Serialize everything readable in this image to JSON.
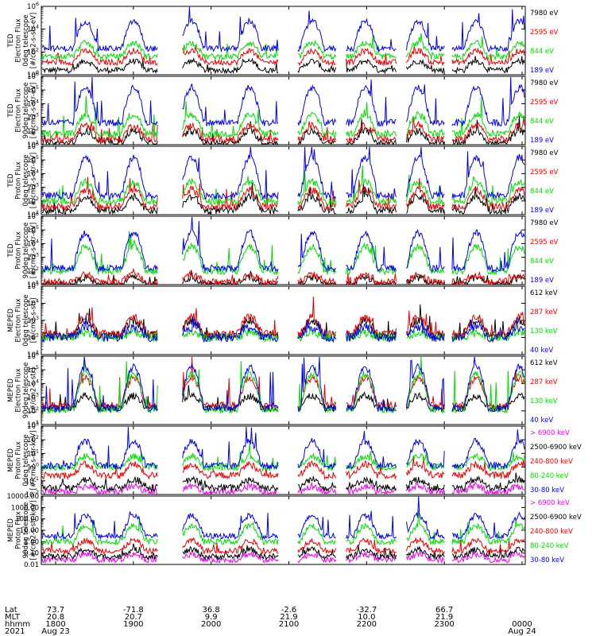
{
  "chart_data": [
    {
      "type": "line",
      "ylabel_lines": [
        "TED",
        "Electron Flux",
        "0deg telescope",
        "[#/cm2-s-str-eV]"
      ],
      "y_ticks": [
        "10^0",
        "10^2",
        "10^4",
        "10^6"
      ],
      "yscale": "log",
      "ylim_exp": [
        0,
        6
      ],
      "series": [
        {
          "name": "7980 eV",
          "color": "#000000",
          "level": 0.4,
          "spikes": 0.8
        },
        {
          "name": "2595 eV",
          "color": "#ee0000",
          "level": 1.1,
          "spikes": 1.0
        },
        {
          "name": "844 eV",
          "color": "#00dd00",
          "level": 1.6,
          "spikes": 1.2
        },
        {
          "name": "189 eV",
          "color": "#0000ee",
          "level": 2.3,
          "spikes": 2.4
        }
      ]
    },
    {
      "type": "line",
      "ylabel_lines": [
        "TED",
        "Electron Flux",
        "90deg telescope",
        "[#/cm2-s-str-eV]"
      ],
      "y_ticks": [
        "10^1",
        "10^2",
        "10^3",
        "10^4",
        "10^5",
        "10^6"
      ],
      "yscale": "log",
      "ylim_exp": [
        1,
        6
      ],
      "series": [
        {
          "name": "7980 eV",
          "color": "#000000",
          "level": 1.1,
          "spikes": 0.9
        },
        {
          "name": "2595 eV",
          "color": "#ee0000",
          "level": 1.4,
          "spikes": 1.0
        },
        {
          "name": "844 eV",
          "color": "#00dd00",
          "level": 1.8,
          "spikes": 1.4
        },
        {
          "name": "189 eV",
          "color": "#0000ee",
          "level": 2.6,
          "spikes": 2.6
        }
      ]
    },
    {
      "type": "line",
      "ylabel_lines": [
        "TED",
        "Proton Flux",
        "0deg telescope",
        "[#/cm2-s-str-eV]"
      ],
      "y_ticks": [
        "10^1",
        "10^2",
        "10^3",
        "10^4",
        "10^5",
        "10^6"
      ],
      "yscale": "log",
      "ylim_exp": [
        1,
        6
      ],
      "series": [
        {
          "name": "7980 eV",
          "color": "#000000",
          "level": 1.3,
          "spikes": 1.0
        },
        {
          "name": "2595 eV",
          "color": "#ee0000",
          "level": 1.6,
          "spikes": 1.2
        },
        {
          "name": "844 eV",
          "color": "#00dd00",
          "level": 2.0,
          "spikes": 1.4
        },
        {
          "name": "189 eV",
          "color": "#0000ee",
          "level": 2.4,
          "spikes": 2.8
        }
      ]
    },
    {
      "type": "line",
      "ylabel_lines": [
        "TED",
        "Proton Flux",
        "90deg telescope",
        "[#/cm2-s-str-eV]"
      ],
      "y_ticks": [
        "10^1",
        "10^2",
        "10^3",
        "10^4",
        "10^5",
        "10^6"
      ],
      "yscale": "log",
      "ylim_exp": [
        1,
        6
      ],
      "series": [
        {
          "name": "7980 eV",
          "color": "#000000",
          "level": 1.0,
          "spikes": 0.5
        },
        {
          "name": "2595 eV",
          "color": "#ee0000",
          "level": 1.2,
          "spikes": 0.5
        },
        {
          "name": "844 eV",
          "color": "#00dd00",
          "level": 2.0,
          "spikes": 1.8
        },
        {
          "name": "189 eV",
          "color": "#0000ee",
          "level": 2.2,
          "spikes": 2.6
        }
      ]
    },
    {
      "type": "line",
      "ylabel_lines": [
        "MEPED",
        "Electron Flux",
        "0deg telescope",
        "[#/cm2-s-str]"
      ],
      "y_ticks": [
        "10^1",
        "10^2",
        "10^3",
        "10^4",
        "10^5"
      ],
      "yscale": "log",
      "ylim_exp": [
        1,
        5
      ],
      "series": [
        {
          "name": "612 keV",
          "color": "#000000",
          "level": 2.1,
          "spikes": 0.9
        },
        {
          "name": "287 keV",
          "color": "#ee0000",
          "level": 2.2,
          "spikes": 1.0
        },
        {
          "name": "130 keV",
          "color": "#00dd00",
          "level": 2.0,
          "spikes": 0.3
        },
        {
          "name": "40 keV",
          "color": "#0000ee",
          "level": 2.0,
          "spikes": 0.6
        }
      ]
    },
    {
      "type": "line",
      "ylabel_lines": [
        "MEPED",
        "Electron Flux",
        "90deg telescope",
        "[#/cm2-s-str]"
      ],
      "y_ticks": [
        "10^1",
        "10^2",
        "10^3",
        "10^4",
        "10^5",
        "10^6"
      ],
      "yscale": "log",
      "ylim_exp": [
        1,
        6
      ],
      "series": [
        {
          "name": "612 keV",
          "color": "#000000",
          "level": 2.2,
          "spikes": 0.9
        },
        {
          "name": "287 keV",
          "color": "#ee0000",
          "level": 2.4,
          "spikes": 2.0
        },
        {
          "name": "130 keV",
          "color": "#00dd00",
          "level": 2.1,
          "spikes": 2.6
        },
        {
          "name": "40 keV",
          "color": "#0000ee",
          "level": 2.2,
          "spikes": 3.0
        }
      ]
    },
    {
      "type": "line",
      "ylabel_lines": [
        "MEPED",
        "Proton Flux",
        "0deg telescope",
        "[#/cm2-s-str-keV]"
      ],
      "y_ticks": [
        "10^-2",
        "10^-1",
        "10^0",
        "10^1",
        "10^2",
        "10^3"
      ],
      "yscale": "log",
      "ylim_exp": [
        -2,
        3
      ],
      "series": [
        {
          "name": "> 6900 keV",
          "color": "#ee00ee",
          "level": -1.8,
          "spikes": 0.4
        },
        {
          "name": "2500-6900 keV",
          "color": "#000000",
          "level": -1.5,
          "spikes": 0.6
        },
        {
          "name": "240-800 keV",
          "color": "#ee0000",
          "level": -0.6,
          "spikes": 0.8
        },
        {
          "name": "80-240 keV",
          "color": "#00dd00",
          "level": 0.0,
          "spikes": 0.8
        },
        {
          "name": "30-80 keV",
          "color": "#0000ee",
          "level": 0.1,
          "spikes": 1.8
        }
      ]
    },
    {
      "type": "line",
      "ylabel_lines": [
        "MEPED",
        "Proton Flux",
        "90deg telescope",
        "[#/cm2-s-str-keV]"
      ],
      "y_ticks": [
        "0.01",
        "0.10",
        "1.00",
        "10.00",
        "100.00",
        "1000.00",
        "10000.00"
      ],
      "yscale": "log",
      "ylim_exp": [
        -2,
        4
      ],
      "series": [
        {
          "name": "> 6900 keV",
          "color": "#ee00ee",
          "level": -1.6,
          "spikes": 0.5
        },
        {
          "name": "2500-6900 keV",
          "color": "#000000",
          "level": -1.3,
          "spikes": 0.6
        },
        {
          "name": "240-800 keV",
          "color": "#ee0000",
          "level": -0.8,
          "spikes": 0.9
        },
        {
          "name": "80-240 keV",
          "color": "#00dd00",
          "level": 0.0,
          "spikes": 1.4
        },
        {
          "name": "30-80 keV",
          "color": "#0000ee",
          "level": 0.5,
          "spikes": 1.8
        }
      ]
    }
  ],
  "x_axis": {
    "row_labels": [
      "Lat",
      "MLT",
      "hhmm",
      "2021"
    ],
    "columns": [
      {
        "lat": "73.7",
        "mlt": "20.8",
        "hhmm": "1800",
        "date": "Aug 23"
      },
      {
        "lat": "-71.8",
        "mlt": "20.7",
        "hhmm": "1900",
        "date": ""
      },
      {
        "lat": "36.8",
        "mlt": "9.9",
        "hhmm": "2000",
        "date": ""
      },
      {
        "lat": "-2.6",
        "mlt": "21.9",
        "hhmm": "2100",
        "date": ""
      },
      {
        "lat": "-32.7",
        "mlt": "10.0",
        "hhmm": "2200",
        "date": ""
      },
      {
        "lat": "66.7",
        "mlt": "21.9",
        "hhmm": "2300",
        "date": ""
      },
      {
        "lat": "",
        "mlt": "",
        "hhmm": "0000",
        "date": "Aug 24"
      }
    ]
  }
}
